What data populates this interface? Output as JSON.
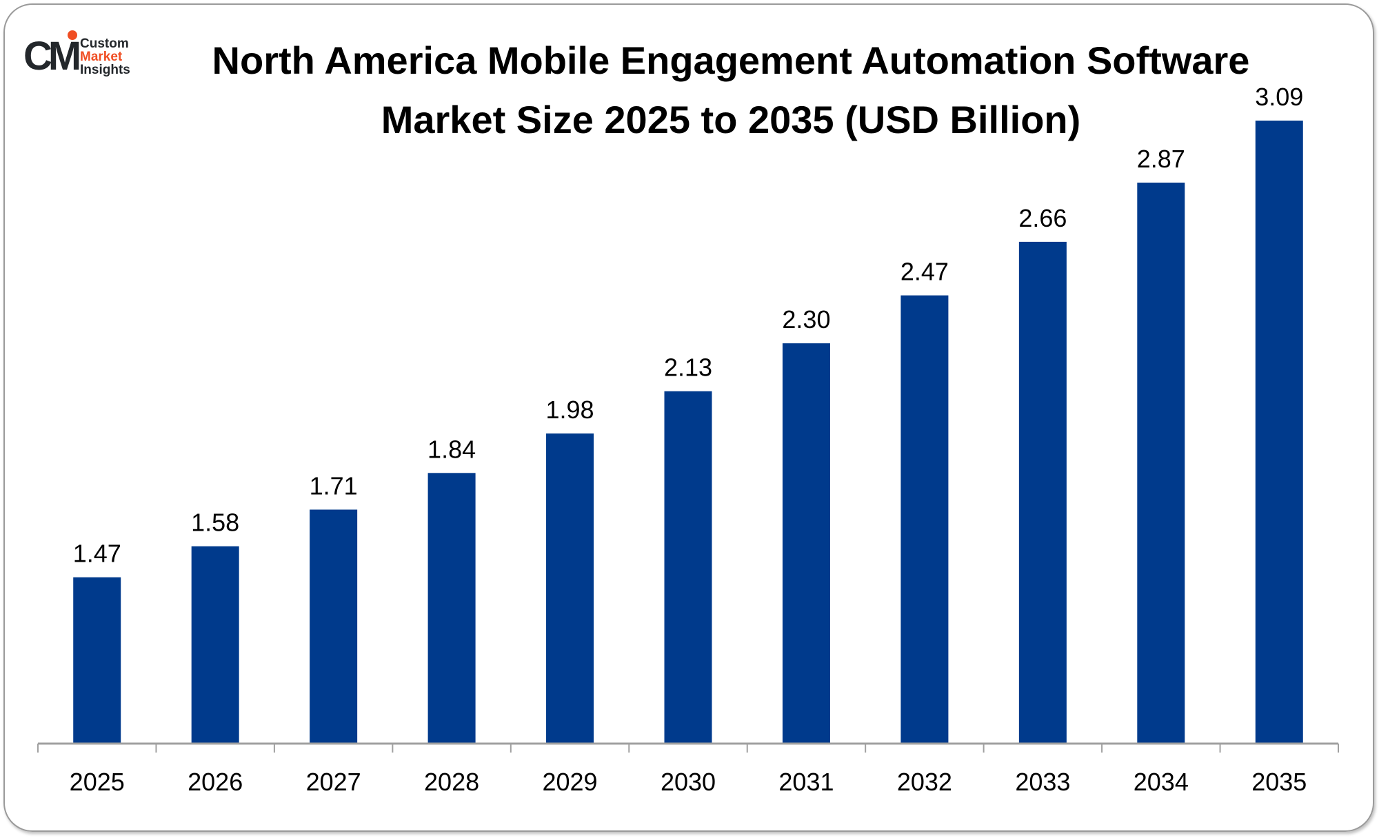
{
  "logo": {
    "line1": "Custom",
    "line2": "Market",
    "line3": "Insights",
    "mark": "CMI",
    "colors": {
      "dark": "#23272b",
      "accent": "#f04e23"
    }
  },
  "chart_data": {
    "type": "bar",
    "title": "North America Mobile Engagement Automation Software Market Size 2025 to 2035 (USD Billion)",
    "categories": [
      "2025",
      "2026",
      "2027",
      "2028",
      "2029",
      "2030",
      "2031",
      "2032",
      "2033",
      "2034",
      "2035"
    ],
    "values": [
      1.47,
      1.58,
      1.71,
      1.84,
      1.98,
      2.13,
      2.3,
      2.47,
      2.66,
      2.87,
      3.09
    ],
    "value_labels": [
      "1.47",
      "1.58",
      "1.71",
      "1.84",
      "1.98",
      "2.13",
      "2.30",
      "2.47",
      "2.66",
      "2.87",
      "3.09"
    ],
    "xlabel": "",
    "ylabel": "",
    "ylim": [
      0.88,
      3.09
    ],
    "grid": false,
    "legend": "none",
    "bar_color": "#003a8c"
  }
}
